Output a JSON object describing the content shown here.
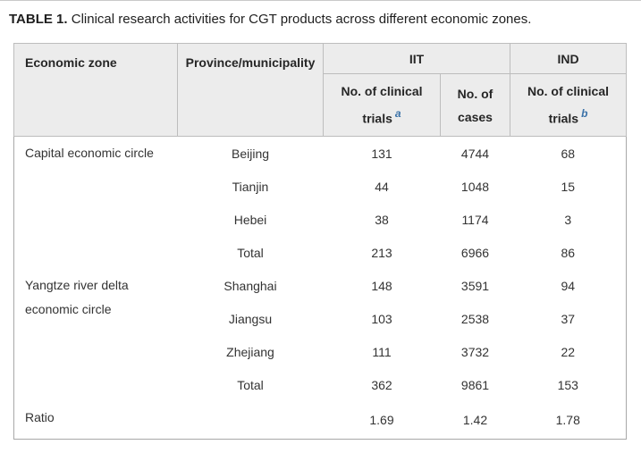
{
  "caption": {
    "label": "TABLE 1.",
    "text": " Clinical research activities for CGT products across different economic zones."
  },
  "colors": {
    "header_background": "#ececec",
    "header_border": "#bdbdbd",
    "table_outer_border": "#a8a8a8",
    "footnote_superscript_blue": "#3b72a8",
    "body_text": "#333333"
  },
  "table": {
    "headers": {
      "economic_zone": "Economic zone",
      "province": "Province/municipality",
      "iit_group": "IIT",
      "ind_group": "IND",
      "iit_trials": "No. of clinical trials",
      "iit_trials_sup": "a",
      "iit_cases_line1": "No. of",
      "iit_cases_line2": "cases",
      "ind_trials": "No. of clinical trials",
      "ind_trials_sup": "b"
    },
    "groups": [
      {
        "zone": "Capital economic circle",
        "rows": [
          {
            "province": "Beijing",
            "iit_trials": "131",
            "iit_cases": "4744",
            "ind_trials": "68"
          },
          {
            "province": "Tianjin",
            "iit_trials": "44",
            "iit_cases": "1048",
            "ind_trials": "15"
          },
          {
            "province": "Hebei",
            "iit_trials": "38",
            "iit_cases": "1174",
            "ind_trials": "3"
          },
          {
            "province": "Total",
            "iit_trials": "213",
            "iit_cases": "6966",
            "ind_trials": "86"
          }
        ]
      },
      {
        "zone": "Yangtze river delta economic circle",
        "rows": [
          {
            "province": "Shanghai",
            "iit_trials": "148",
            "iit_cases": "3591",
            "ind_trials": "94"
          },
          {
            "province": "Jiangsu",
            "iit_trials": "103",
            "iit_cases": "2538",
            "ind_trials": "37"
          },
          {
            "province": "Zhejiang",
            "iit_trials": "111",
            "iit_cases": "3732",
            "ind_trials": "22"
          },
          {
            "province": "Total",
            "iit_trials": "362",
            "iit_cases": "9861",
            "ind_trials": "153"
          }
        ]
      }
    ],
    "ratio_row": {
      "label": "Ratio",
      "province": "",
      "iit_trials": "1.69",
      "iit_cases": "1.42",
      "ind_trials": "1.78"
    }
  },
  "chart_data": {
    "type": "table",
    "title": "TABLE 1. Clinical research activities for CGT products across different economic zones.",
    "columns": [
      "Economic zone",
      "Province/municipality",
      "IIT No. of clinical trials",
      "IIT No. of cases",
      "IND No. of clinical trials"
    ],
    "rows": [
      [
        "Capital economic circle",
        "Beijing",
        131,
        4744,
        68
      ],
      [
        "Capital economic circle",
        "Tianjin",
        44,
        1048,
        15
      ],
      [
        "Capital economic circle",
        "Hebei",
        38,
        1174,
        3
      ],
      [
        "Capital economic circle",
        "Total",
        213,
        6966,
        86
      ],
      [
        "Yangtze river delta economic circle",
        "Shanghai",
        148,
        3591,
        94
      ],
      [
        "Yangtze river delta economic circle",
        "Jiangsu",
        103,
        2538,
        37
      ],
      [
        "Yangtze river delta economic circle",
        "Zhejiang",
        111,
        3732,
        22
      ],
      [
        "Yangtze river delta economic circle",
        "Total",
        362,
        9861,
        153
      ],
      [
        "Ratio",
        "",
        1.69,
        1.42,
        1.78
      ]
    ]
  }
}
